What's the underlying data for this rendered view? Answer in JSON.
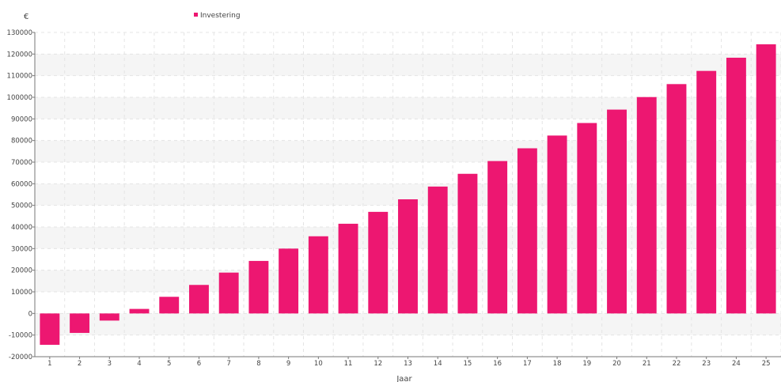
{
  "chart_data": {
    "type": "bar",
    "title": "",
    "xlabel": "Jaar",
    "ylabel": "€",
    "ylim": [
      -20000,
      130000
    ],
    "y_ticks": [
      -20000,
      -10000,
      0,
      10000,
      20000,
      30000,
      40000,
      50000,
      60000,
      70000,
      80000,
      90000,
      100000,
      110000,
      120000,
      130000
    ],
    "y_tick_labels": [
      "-20000",
      "-10000",
      "0",
      "10000",
      "20000",
      "30000",
      "40000",
      "50000",
      "60000",
      "70000",
      "80000",
      "90000",
      "100000",
      "110000",
      "120000",
      "130000"
    ],
    "categories": [
      "1",
      "2",
      "3",
      "4",
      "5",
      "6",
      "7",
      "8",
      "9",
      "10",
      "11",
      "12",
      "13",
      "14",
      "15",
      "16",
      "17",
      "18",
      "19",
      "20",
      "21",
      "22",
      "23",
      "24",
      "25"
    ],
    "series": [
      {
        "name": "Investering",
        "color": "#ED1771",
        "values": [
          -14500,
          -9000,
          -3300,
          2100,
          7700,
          13200,
          18900,
          24300,
          30000,
          35700,
          41500,
          47000,
          52800,
          58700,
          64600,
          70500,
          76400,
          82300,
          88100,
          94300,
          100100,
          106100,
          112200,
          118300,
          124500
        ]
      }
    ],
    "legend_position": "top-center",
    "grid": true,
    "band_color": "#F5F5F5",
    "grid_color": "#E4E4E4"
  }
}
